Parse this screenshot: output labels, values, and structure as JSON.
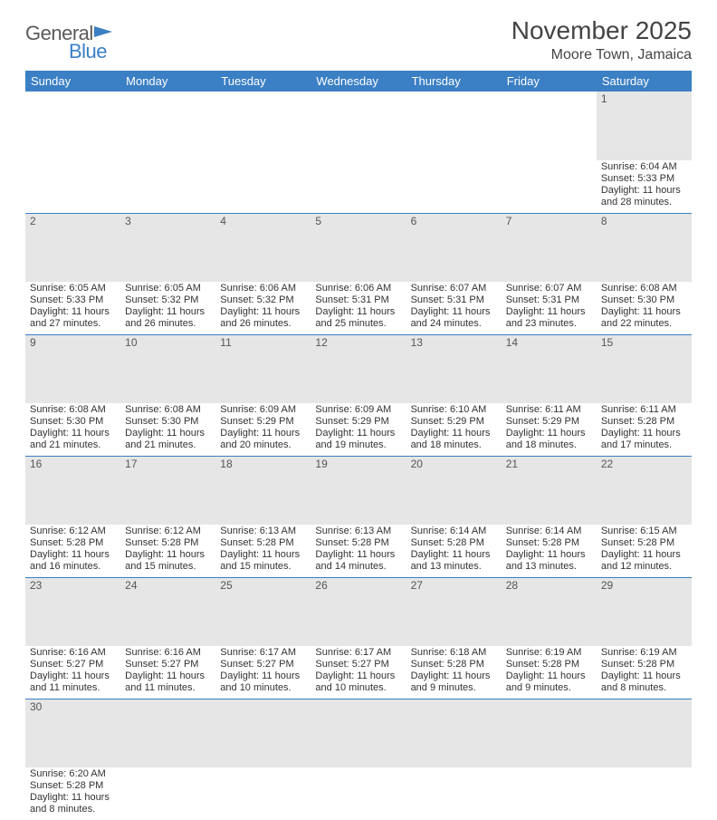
{
  "logo": {
    "general": "General",
    "blue": "Blue"
  },
  "title": "November 2025",
  "location": "Moore Town, Jamaica",
  "colors": {
    "header_bg": "#3b7fc4",
    "header_text": "#ffffff",
    "daynum_bg": "#e6e6e6",
    "border": "#3b7fc4",
    "text": "#333333"
  },
  "weekdays": [
    "Sunday",
    "Monday",
    "Tuesday",
    "Wednesday",
    "Thursday",
    "Friday",
    "Saturday"
  ],
  "weeks": [
    [
      null,
      null,
      null,
      null,
      null,
      null,
      {
        "n": "1",
        "sr": "6:04 AM",
        "ss": "5:33 PM",
        "dl": "11 hours and 28 minutes."
      }
    ],
    [
      {
        "n": "2",
        "sr": "6:05 AM",
        "ss": "5:33 PM",
        "dl": "11 hours and 27 minutes."
      },
      {
        "n": "3",
        "sr": "6:05 AM",
        "ss": "5:32 PM",
        "dl": "11 hours and 26 minutes."
      },
      {
        "n": "4",
        "sr": "6:06 AM",
        "ss": "5:32 PM",
        "dl": "11 hours and 26 minutes."
      },
      {
        "n": "5",
        "sr": "6:06 AM",
        "ss": "5:31 PM",
        "dl": "11 hours and 25 minutes."
      },
      {
        "n": "6",
        "sr": "6:07 AM",
        "ss": "5:31 PM",
        "dl": "11 hours and 24 minutes."
      },
      {
        "n": "7",
        "sr": "6:07 AM",
        "ss": "5:31 PM",
        "dl": "11 hours and 23 minutes."
      },
      {
        "n": "8",
        "sr": "6:08 AM",
        "ss": "5:30 PM",
        "dl": "11 hours and 22 minutes."
      }
    ],
    [
      {
        "n": "9",
        "sr": "6:08 AM",
        "ss": "5:30 PM",
        "dl": "11 hours and 21 minutes."
      },
      {
        "n": "10",
        "sr": "6:08 AM",
        "ss": "5:30 PM",
        "dl": "11 hours and 21 minutes."
      },
      {
        "n": "11",
        "sr": "6:09 AM",
        "ss": "5:29 PM",
        "dl": "11 hours and 20 minutes."
      },
      {
        "n": "12",
        "sr": "6:09 AM",
        "ss": "5:29 PM",
        "dl": "11 hours and 19 minutes."
      },
      {
        "n": "13",
        "sr": "6:10 AM",
        "ss": "5:29 PM",
        "dl": "11 hours and 18 minutes."
      },
      {
        "n": "14",
        "sr": "6:11 AM",
        "ss": "5:29 PM",
        "dl": "11 hours and 18 minutes."
      },
      {
        "n": "15",
        "sr": "6:11 AM",
        "ss": "5:28 PM",
        "dl": "11 hours and 17 minutes."
      }
    ],
    [
      {
        "n": "16",
        "sr": "6:12 AM",
        "ss": "5:28 PM",
        "dl": "11 hours and 16 minutes."
      },
      {
        "n": "17",
        "sr": "6:12 AM",
        "ss": "5:28 PM",
        "dl": "11 hours and 15 minutes."
      },
      {
        "n": "18",
        "sr": "6:13 AM",
        "ss": "5:28 PM",
        "dl": "11 hours and 15 minutes."
      },
      {
        "n": "19",
        "sr": "6:13 AM",
        "ss": "5:28 PM",
        "dl": "11 hours and 14 minutes."
      },
      {
        "n": "20",
        "sr": "6:14 AM",
        "ss": "5:28 PM",
        "dl": "11 hours and 13 minutes."
      },
      {
        "n": "21",
        "sr": "6:14 AM",
        "ss": "5:28 PM",
        "dl": "11 hours and 13 minutes."
      },
      {
        "n": "22",
        "sr": "6:15 AM",
        "ss": "5:28 PM",
        "dl": "11 hours and 12 minutes."
      }
    ],
    [
      {
        "n": "23",
        "sr": "6:16 AM",
        "ss": "5:27 PM",
        "dl": "11 hours and 11 minutes."
      },
      {
        "n": "24",
        "sr": "6:16 AM",
        "ss": "5:27 PM",
        "dl": "11 hours and 11 minutes."
      },
      {
        "n": "25",
        "sr": "6:17 AM",
        "ss": "5:27 PM",
        "dl": "11 hours and 10 minutes."
      },
      {
        "n": "26",
        "sr": "6:17 AM",
        "ss": "5:27 PM",
        "dl": "11 hours and 10 minutes."
      },
      {
        "n": "27",
        "sr": "6:18 AM",
        "ss": "5:28 PM",
        "dl": "11 hours and 9 minutes."
      },
      {
        "n": "28",
        "sr": "6:19 AM",
        "ss": "5:28 PM",
        "dl": "11 hours and 9 minutes."
      },
      {
        "n": "29",
        "sr": "6:19 AM",
        "ss": "5:28 PM",
        "dl": "11 hours and 8 minutes."
      }
    ],
    [
      {
        "n": "30",
        "sr": "6:20 AM",
        "ss": "5:28 PM",
        "dl": "11 hours and 8 minutes."
      },
      null,
      null,
      null,
      null,
      null,
      null
    ]
  ],
  "labels": {
    "sunrise": "Sunrise:",
    "sunset": "Sunset:",
    "daylight": "Daylight:"
  }
}
